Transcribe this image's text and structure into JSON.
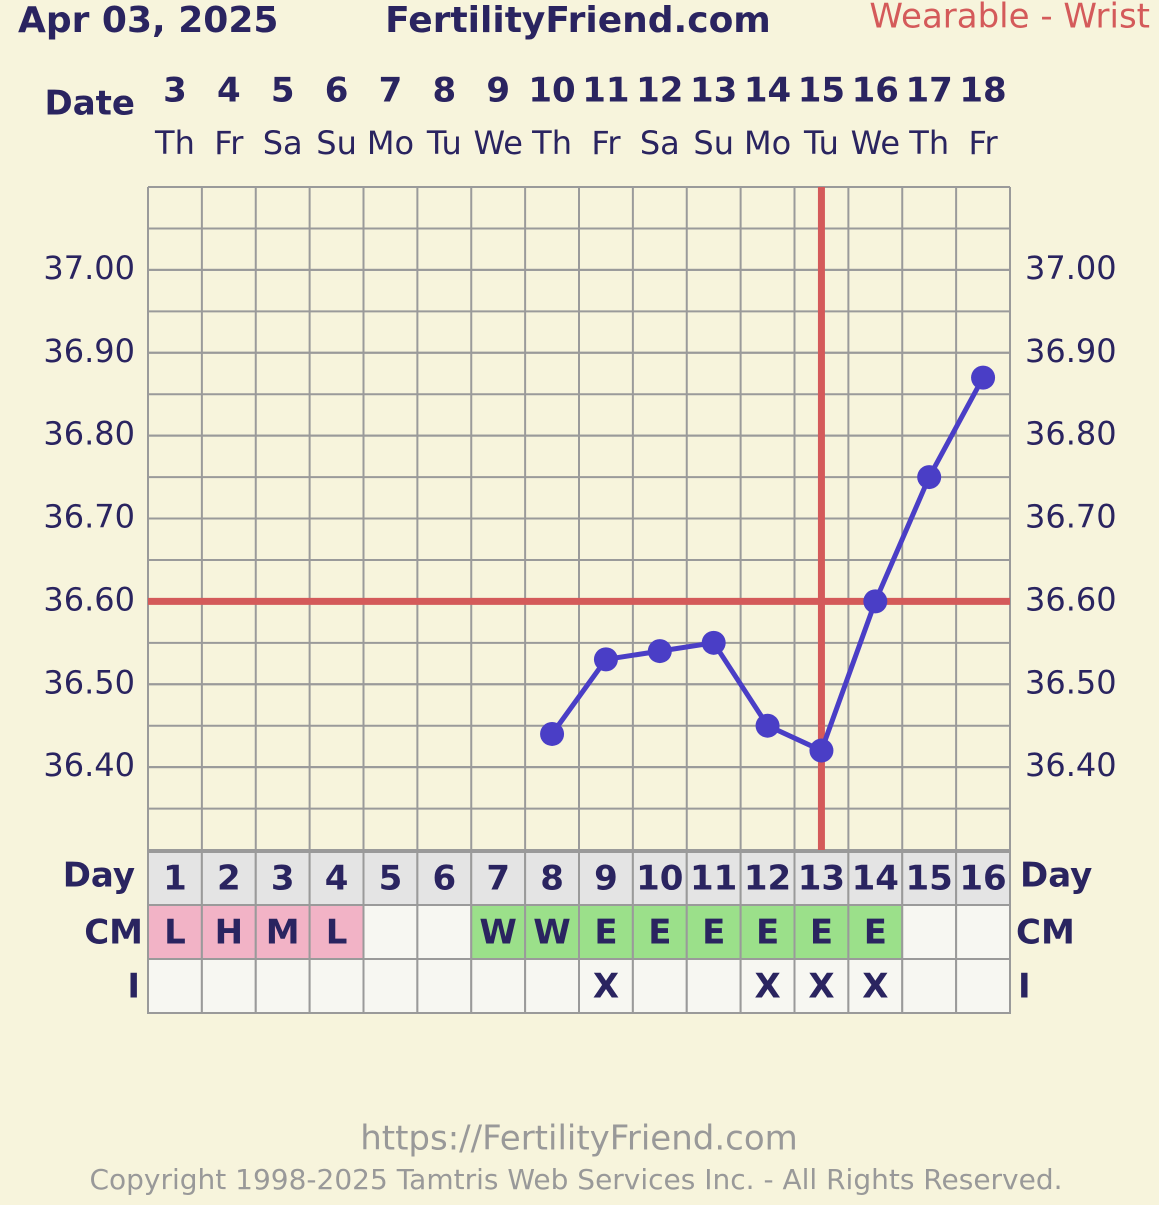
{
  "chart_data": {
    "type": "line",
    "date_label": "Apr 03, 2025",
    "site_title": "FertilityFriend.com",
    "subtitle": "Wearable - Wrist",
    "row_labels": {
      "date": "Date",
      "day": "Day",
      "cm": "CM",
      "intercourse": "I"
    },
    "dates": [
      "3",
      "4",
      "5",
      "6",
      "7",
      "8",
      "9",
      "10",
      "11",
      "12",
      "13",
      "14",
      "15",
      "16",
      "17",
      "18"
    ],
    "weekdays": [
      "Th",
      "Fr",
      "Sa",
      "Su",
      "Mo",
      "Tu",
      "We",
      "Th",
      "Fr",
      "Sa",
      "Su",
      "Mo",
      "Tu",
      "We",
      "Th",
      "Fr"
    ],
    "cycle_days": [
      "1",
      "2",
      "3",
      "4",
      "5",
      "6",
      "7",
      "8",
      "9",
      "10",
      "11",
      "12",
      "13",
      "14",
      "15",
      "16"
    ],
    "series": [
      {
        "name": "Temperature",
        "color": "#4a3ec6",
        "values": [
          null,
          null,
          null,
          null,
          null,
          null,
          null,
          36.44,
          36.53,
          36.54,
          36.55,
          36.45,
          36.42,
          36.6,
          36.75,
          36.87
        ]
      }
    ],
    "ylim": [
      36.3,
      37.1
    ],
    "yticks": [
      {
        "value": 36.4,
        "label": "36.40"
      },
      {
        "value": 36.5,
        "label": "36.50"
      },
      {
        "value": 36.6,
        "label": "36.60"
      },
      {
        "value": 36.7,
        "label": "36.70"
      },
      {
        "value": 36.8,
        "label": "36.80"
      },
      {
        "value": 36.9,
        "label": "36.90"
      },
      {
        "value": 37.0,
        "label": "37.00"
      }
    ],
    "coverline": 36.6,
    "ovulation_day": "13",
    "marker_color": "#d45a5a",
    "cm": [
      "L",
      "H",
      "M",
      "L",
      null,
      null,
      "W",
      "W",
      "E",
      "E",
      "E",
      "E",
      "E",
      "E",
      null,
      null
    ],
    "cm_colors": {
      "L": "#f2b3c6",
      "H": "#f2b3c6",
      "M": "#f2b3c6",
      "W": "#9be08a",
      "E": "#9be08a"
    },
    "intercourse": [
      null,
      null,
      null,
      null,
      null,
      null,
      null,
      null,
      "X",
      null,
      null,
      "X",
      "X",
      "X",
      null,
      null
    ],
    "footer_url": "https://FertilityFriend.com",
    "copyright": "Copyright 1998-2025 Tamtris Web Services Inc. - All Rights Reserved."
  }
}
